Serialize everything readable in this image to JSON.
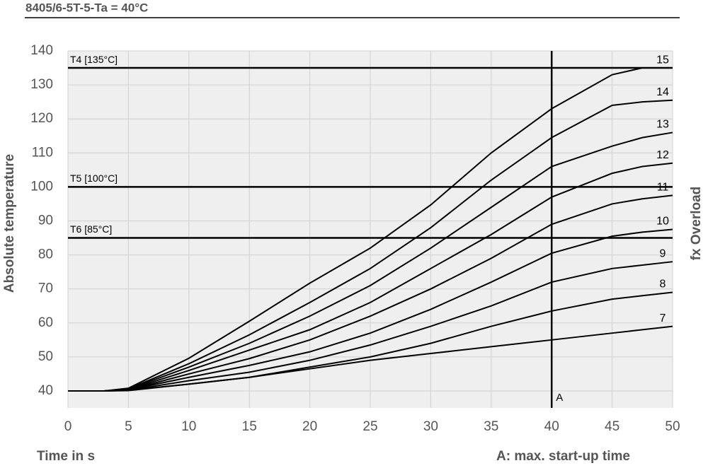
{
  "chart_data": {
    "type": "line",
    "title": "8405/6-5T-5-Ta = 40°C",
    "x_label": "Time in s",
    "y_label": "Absolute temperature",
    "y2_label": "fx Overload",
    "note": "A: max. start-up time",
    "x": [
      0,
      3,
      5,
      10,
      15,
      20,
      25,
      30,
      35,
      40,
      45,
      47.5,
      50
    ],
    "series": [
      {
        "name": "7",
        "color": "#000000",
        "values": [
          40,
          40,
          40.1,
          42,
          44,
          46.5,
          49,
          51,
          53,
          55,
          57,
          58,
          59
        ]
      },
      {
        "name": "8",
        "color": "#000000",
        "values": [
          40,
          40,
          40.2,
          42,
          44,
          47,
          50,
          54,
          59,
          63.5,
          67,
          68,
          69
        ]
      },
      {
        "name": "9",
        "color": "#000000",
        "values": [
          40,
          40,
          40.2,
          43,
          45.5,
          49,
          53.5,
          59,
          65,
          72,
          76,
          77,
          78
        ]
      },
      {
        "name": "10",
        "color": "#000000",
        "values": [
          40,
          40,
          40.3,
          44,
          47.5,
          51.5,
          57,
          64,
          72,
          80.5,
          85.5,
          86.7,
          87.5
        ]
      },
      {
        "name": "11",
        "color": "#000000",
        "values": [
          40,
          40,
          40.3,
          45,
          49.5,
          55,
          62,
          70,
          79,
          89,
          95,
          96.5,
          97.5
        ]
      },
      {
        "name": "12",
        "color": "#000000",
        "values": [
          40,
          40,
          40.4,
          46,
          52,
          58,
          66,
          76,
          86,
          97,
          104,
          106,
          107
        ]
      },
      {
        "name": "13",
        "color": "#000000",
        "values": [
          40,
          40,
          40.5,
          47,
          54,
          62,
          71,
          82,
          94,
          106,
          112,
          114.5,
          116
        ]
      },
      {
        "name": "14",
        "color": "#000000",
        "values": [
          40,
          40,
          40.6,
          48,
          56.5,
          66,
          76,
          88,
          102,
          114.5,
          124,
          125,
          125.5
        ]
      },
      {
        "name": "15",
        "color": "#000000",
        "values": [
          40,
          40,
          40.8,
          49.6,
          60.5,
          71.7,
          82,
          94.7,
          110,
          123,
          133,
          135,
          135
        ]
      }
    ],
    "reference_lines": [
      {
        "label": "T4 [135°C]",
        "value": 135
      },
      {
        "label": "T5 [100°C]",
        "value": 100
      },
      {
        "label": "T6 [85°C]",
        "value": 85
      }
    ],
    "vertical_line": {
      "label": "A",
      "value": 40
    },
    "xlim": [
      0,
      50
    ],
    "xticks": [
      0,
      5,
      10,
      15,
      20,
      25,
      30,
      35,
      40,
      45,
      50
    ],
    "ylim": [
      35,
      140
    ],
    "yticks": [
      40,
      50,
      60,
      70,
      80,
      90,
      100,
      110,
      120,
      130,
      140
    ],
    "grid": true
  }
}
